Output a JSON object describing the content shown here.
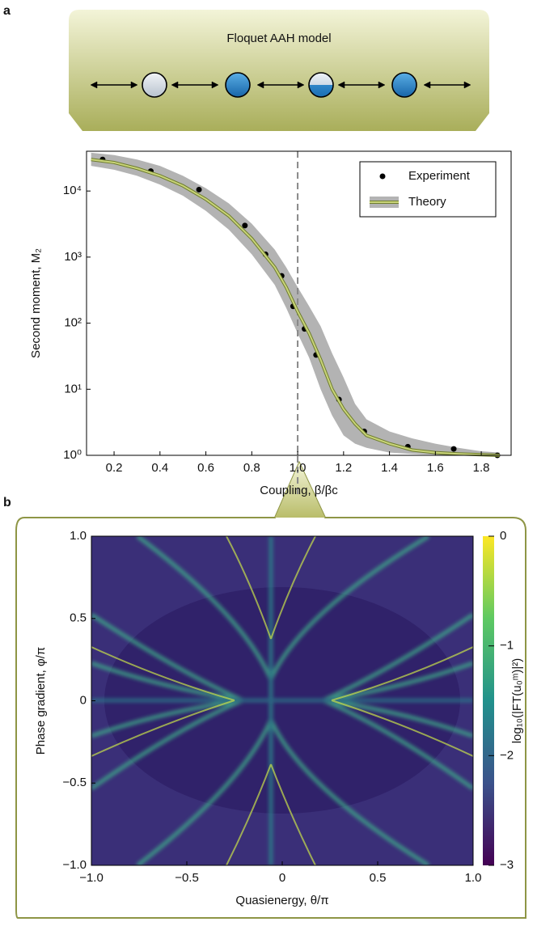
{
  "panel_labels": [
    "a",
    "b"
  ],
  "diagram": {
    "title": "Floquet AAH model"
  },
  "chart_data": [
    {
      "type": "line",
      "xlabel": "Coupling, β/βc",
      "ylabel": "Second moment, M₂",
      "xlim": [
        0.08,
        1.93
      ],
      "xticks": [
        0.2,
        0.4,
        0.6,
        0.8,
        {
          "value": 1,
          "label": "1.0"
        },
        1.2,
        1.4,
        1.6,
        1.8
      ],
      "ylim": [
        1,
        40000
      ],
      "log_y": true,
      "yticks": [
        {
          "value": 1,
          "label": "10⁰"
        },
        {
          "value": 10,
          "label": "10¹"
        },
        {
          "value": 100,
          "label": "10²"
        },
        {
          "value": 1000,
          "label": "10³"
        },
        {
          "value": 10000,
          "label": "10⁴"
        }
      ],
      "vline": 1,
      "legend": "upper right",
      "series": [
        {
          "name": "Experiment",
          "color": "#000000",
          "marker": "dot",
          "x": [
            0.15,
            0.36,
            0.57,
            0.77,
            0.86,
            0.93,
            0.98,
            1.03,
            1.08,
            1.18,
            1.29,
            1.48,
            1.68,
            1.87
          ],
          "values": [
            30000,
            20000,
            10500,
            3000,
            1100,
            520,
            180,
            82,
            33,
            7,
            2.3,
            1.35,
            1.25,
            1.0
          ]
        },
        {
          "name": "Theory",
          "color": "#c9d47a",
          "band_color": "#b3b3b3",
          "x": [
            0.1,
            0.2,
            0.3,
            0.4,
            0.5,
            0.6,
            0.7,
            0.8,
            0.9,
            0.95,
            1.0,
            1.05,
            1.1,
            1.15,
            1.2,
            1.25,
            1.3,
            1.4,
            1.5,
            1.6,
            1.7,
            1.8,
            1.88
          ],
          "values": [
            30000,
            27000,
            22000,
            17000,
            12000,
            7500,
            4200,
            1900,
            700,
            350,
            150,
            70,
            28,
            10,
            5,
            3,
            2,
            1.5,
            1.2,
            1.1,
            1.05,
            1.02,
            1.0
          ],
          "band_upper": [
            38000,
            35000,
            30000,
            24000,
            17000,
            11000,
            6500,
            3200,
            1300,
            700,
            350,
            180,
            90,
            35,
            15,
            6,
            3.5,
            2.3,
            1.8,
            1.5,
            1.3,
            1.15,
            1.1
          ],
          "band_lower": [
            24000,
            21000,
            17000,
            12500,
            8500,
            5000,
            2600,
            1100,
            380,
            170,
            70,
            30,
            10,
            4,
            2,
            1.5,
            1.3,
            1.1,
            1.05,
            1.02,
            1.0,
            1.0,
            1.0
          ]
        }
      ]
    },
    {
      "type": "heatmap",
      "xlabel": "Quasienergy, θ/π",
      "ylabel": "Phase gradient, φ/π",
      "xlim": [
        -1,
        1
      ],
      "xticks": [
        {
          "value": -1,
          "label": "−1.0"
        },
        {
          "value": -0.5,
          "label": "−0.5"
        },
        0,
        0.5,
        {
          "value": 1,
          "label": "1.0"
        }
      ],
      "ylim": [
        -1,
        1
      ],
      "yticks": [
        {
          "value": -1,
          "label": "−1.0"
        },
        {
          "value": -0.5,
          "label": "−0.5"
        },
        0,
        0.5,
        {
          "value": 1,
          "label": "1.0"
        }
      ],
      "colorbar_label": "log₁₀(|FT(u₀ᵐ)|²)",
      "colormap": "viridis",
      "clim": [
        -3,
        0
      ],
      "cticks": [
        {
          "value": -3,
          "label": "−3"
        },
        {
          "value": -2,
          "label": "−2"
        },
        {
          "value": -1,
          "label": "−1"
        },
        0
      ]
    }
  ]
}
